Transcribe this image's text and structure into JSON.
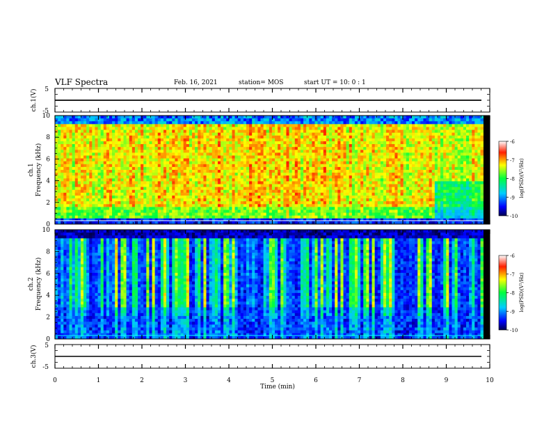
{
  "header": {
    "title": "VLF Spectra",
    "date": "Feb. 16, 2021",
    "station": "station= MOS",
    "start": "start  UT  =   10: 0   : 1"
  },
  "chart_data": [
    {
      "type": "line",
      "name": "ch1-voltage",
      "ylabel": "ch.1(V)",
      "yticks": [
        "5",
        "-5"
      ],
      "ylim": [
        -5,
        5
      ],
      "xlim": [
        0,
        10
      ],
      "level": 0
    },
    {
      "type": "heatmap",
      "name": "ch1-spectrogram",
      "ylabel": "Frequency (kHz)",
      "chlabel": "ch.1",
      "yticks": [
        "10",
        "8",
        "6",
        "4",
        "2",
        "0"
      ],
      "ylim": [
        0,
        10
      ],
      "xlim": [
        0,
        9.85
      ],
      "colorbar": {
        "label": "log(PSD)(V²/Hz)",
        "ticks": [
          "-6",
          "-7",
          "-8",
          "-9",
          "-10"
        ],
        "range": [
          -10,
          -6
        ]
      }
    },
    {
      "type": "heatmap",
      "name": "ch2-spectrogram",
      "ylabel": "Frequency (kHz)",
      "chlabel": "ch.2",
      "yticks": [
        "10",
        "8",
        "6",
        "4",
        "2",
        "0"
      ],
      "ylim": [
        0,
        10
      ],
      "xlim": [
        0,
        9.85
      ],
      "colorbar": {
        "label": "log(PSD)(V²/Hz)",
        "ticks": [
          "-6",
          "-7",
          "-8",
          "-9",
          "-10"
        ],
        "range": [
          -10,
          -6
        ]
      }
    },
    {
      "type": "line",
      "name": "ch3-voltage",
      "ylabel": "ch.3(V)",
      "yticks": [
        "5",
        "-5"
      ],
      "ylim": [
        -5,
        5
      ],
      "xlim": [
        0,
        10
      ],
      "level": 0
    }
  ],
  "xaxis": {
    "label": "Time  (min)",
    "ticks": [
      "0",
      "1",
      "2",
      "3",
      "4",
      "5",
      "6",
      "7",
      "8",
      "9",
      "10"
    ],
    "range": [
      0,
      10
    ]
  }
}
